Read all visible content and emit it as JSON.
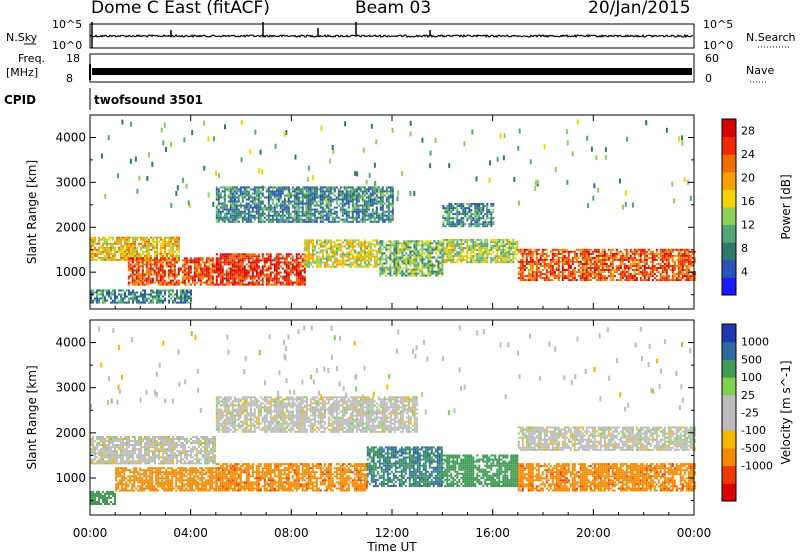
{
  "header": {
    "station": "Dome C East (fitACF)",
    "beam": "Beam 03",
    "date": "20/Jan/2015"
  },
  "status_panels": {
    "nsky": {
      "label": "N.Sky",
      "ticks": [
        "10^5",
        "10^0"
      ]
    },
    "nsearch": {
      "label": "N.Search",
      "ticks": [
        "10^5",
        "10^0"
      ]
    },
    "freq": {
      "label_top": "Freq.",
      "label_bottom": "[MHz]",
      "ticks": [
        "18",
        "8"
      ]
    },
    "nave": {
      "label": "Nave",
      "ticks": [
        "60",
        "0"
      ]
    },
    "cpid": {
      "label": "CPID",
      "value": "twofsound 3501"
    }
  },
  "colors": {
    "power": [
      "#1a1aff",
      "#2a54b8",
      "#2e7a6a",
      "#52a87a",
      "#8fd05a",
      "#f5d200",
      "#f5a000",
      "#ef6e00",
      "#ef2a00",
      "#d80000"
    ],
    "velocity": [
      "#d80000",
      "#ee3a00",
      "#f58a00",
      "#f5b700",
      "#bcbcbc",
      "#bcbcbc",
      "#7fd04a",
      "#3f9a55",
      "#2f6aa0",
      "#1f37b0"
    ]
  },
  "chart_data": [
    {
      "type": "heatmap",
      "title": "",
      "xlabel": "",
      "ylabel": "Slant Range [km]",
      "x_ticks": [
        "00:00",
        "04:00",
        "08:00",
        "12:00",
        "16:00",
        "20:00",
        "00:00"
      ],
      "x_range_hours": [
        0,
        24
      ],
      "y_ticks": [
        1000,
        2000,
        3000,
        4000
      ],
      "ylim": [
        180,
        4500
      ],
      "colorbar": {
        "label": "Power [dB]",
        "ticks": [
          4,
          8,
          12,
          16,
          20,
          24,
          28
        ],
        "range": [
          0,
          30
        ]
      },
      "bands": [
        {
          "x": [
            0,
            3.5
          ],
          "y": [
            1250,
            1750
          ],
          "level": 18
        },
        {
          "x": [
            1.5,
            5
          ],
          "y": [
            700,
            1300
          ],
          "level": 24
        },
        {
          "x": [
            5,
            8.5
          ],
          "y": [
            700,
            1400
          ],
          "level": 26
        },
        {
          "x": [
            8.5,
            11.5
          ],
          "y": [
            1100,
            1700
          ],
          "level": 16
        },
        {
          "x": [
            11.5,
            14
          ],
          "y": [
            900,
            1700
          ],
          "level": 12
        },
        {
          "x": [
            14,
            17
          ],
          "y": [
            1200,
            1700
          ],
          "level": 14
        },
        {
          "x": [
            17,
            24
          ],
          "y": [
            800,
            1500
          ],
          "level": 24
        },
        {
          "x": [
            5,
            12
          ],
          "y": [
            2100,
            2900
          ],
          "level": 8
        },
        {
          "x": [
            0,
            4
          ],
          "y": [
            300,
            600
          ],
          "level": 8
        },
        {
          "x": [
            14,
            16
          ],
          "y": [
            2000,
            2500
          ],
          "level": 8
        }
      ]
    },
    {
      "type": "heatmap",
      "title": "",
      "xlabel": "Time UT",
      "ylabel": "Slant Range [km]",
      "x_ticks": [
        "00:00",
        "04:00",
        "08:00",
        "12:00",
        "16:00",
        "20:00",
        "00:00"
      ],
      "x_range_hours": [
        0,
        24
      ],
      "y_ticks": [
        1000,
        2000,
        3000,
        4000
      ],
      "ylim": [
        180,
        4500
      ],
      "colorbar": {
        "label": "Velocity [m s^-1]",
        "ticks": [
          1000,
          500,
          100,
          25,
          -25,
          -100,
          -500,
          -1000
        ]
      },
      "bands": [
        {
          "x": [
            0,
            5
          ],
          "y": [
            1300,
            1900
          ],
          "level": 0
        },
        {
          "x": [
            1,
            5
          ],
          "y": [
            700,
            1200
          ],
          "level": -150
        },
        {
          "x": [
            5,
            11
          ],
          "y": [
            700,
            1300
          ],
          "level": -400
        },
        {
          "x": [
            11,
            14
          ],
          "y": [
            800,
            1700
          ],
          "level": 500
        },
        {
          "x": [
            14,
            17
          ],
          "y": [
            800,
            1500
          ],
          "level": 200
        },
        {
          "x": [
            17,
            24
          ],
          "y": [
            700,
            1300
          ],
          "level": -400
        },
        {
          "x": [
            5,
            13
          ],
          "y": [
            2000,
            2800
          ],
          "level": 0
        },
        {
          "x": [
            17,
            24
          ],
          "y": [
            1600,
            2100
          ],
          "level": 0
        },
        {
          "x": [
            0,
            1
          ],
          "y": [
            400,
            700
          ],
          "level": 200
        }
      ]
    }
  ]
}
